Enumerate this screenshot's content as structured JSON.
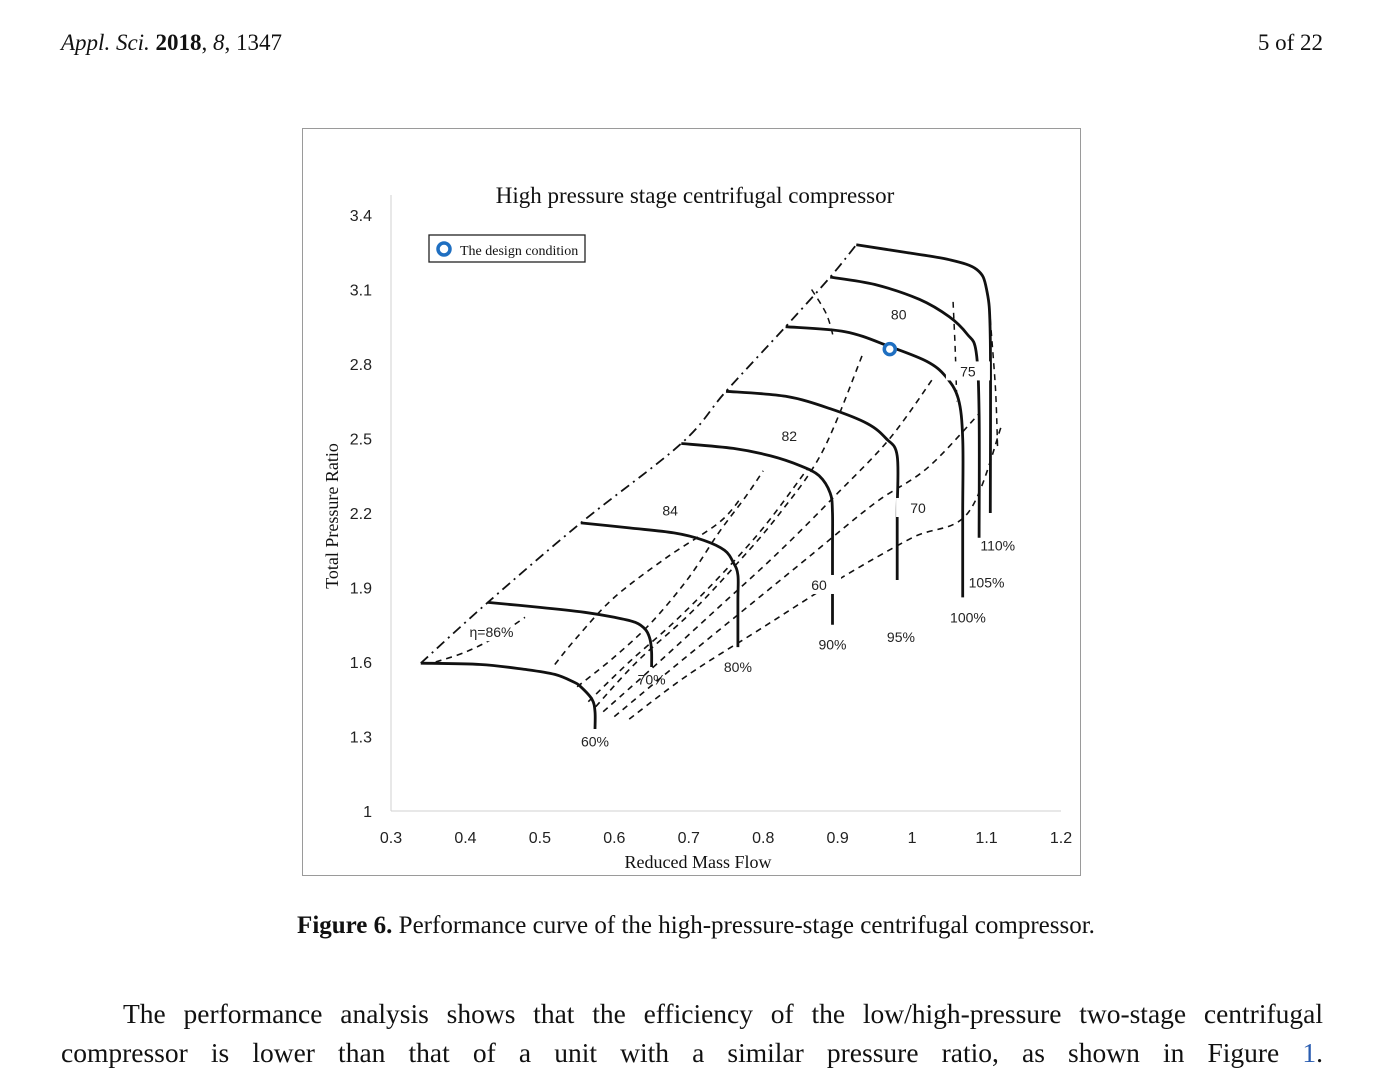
{
  "header": {
    "journal": "Appl. Sci.",
    "year": "2018",
    "volume": "8",
    "article": "1347",
    "page": "5 of 22"
  },
  "caption": {
    "label": "Figure 6.",
    "text": "Performance curve of the high-pressure-stage centrifugal compressor."
  },
  "paragraph": {
    "line1": "The performance analysis shows that the efficiency of the low/high-pressure two-stage centrifugal",
    "line2_before": "compressor is lower than that of a unit with a similar pressure ratio, as shown in Figure",
    "line2_ref": "1",
    "line2_after": "."
  },
  "chart_data": {
    "type": "line",
    "title": "High pressure stage centrifugal compressor",
    "xlabel": "Reduced Mass Flow",
    "ylabel": "Total Pressure Ratio",
    "xlim": [
      0.3,
      1.2
    ],
    "ylim": [
      1,
      3.4
    ],
    "x_ticks": [
      "0.3",
      "0.4",
      "0.5",
      "0.6",
      "0.7",
      "0.8",
      "0.9",
      "1",
      "1.1",
      "1.2"
    ],
    "y_ticks": [
      "1",
      "1.3",
      "1.6",
      "1.9",
      "2.2",
      "2.5",
      "2.8",
      "3.1",
      "3.4"
    ],
    "legend": {
      "label": "The design condition",
      "position": "top-left"
    },
    "speed_lines": [
      {
        "name": "60%",
        "x": [
          0.34,
          0.42,
          0.48,
          0.52,
          0.545,
          0.555,
          0.57,
          0.574,
          0.574
        ],
        "y": [
          1.595,
          1.59,
          1.57,
          1.55,
          1.52,
          1.5,
          1.45,
          1.4,
          1.33
        ]
      },
      {
        "name": "70%",
        "x": [
          0.43,
          0.5,
          0.56,
          0.6,
          0.628,
          0.642,
          0.648,
          0.65,
          0.65
        ],
        "y": [
          1.84,
          1.82,
          1.8,
          1.78,
          1.76,
          1.73,
          1.69,
          1.64,
          1.58
        ]
      },
      {
        "name": "80%",
        "x": [
          0.555,
          0.62,
          0.68,
          0.72,
          0.748,
          0.76,
          0.766,
          0.766,
          0.766
        ],
        "y": [
          2.16,
          2.14,
          2.12,
          2.09,
          2.05,
          2.0,
          1.95,
          1.85,
          1.66
        ]
      },
      {
        "name": "90%",
        "x": [
          0.69,
          0.76,
          0.81,
          0.85,
          0.875,
          0.89,
          0.893,
          0.893,
          0.893
        ],
        "y": [
          2.48,
          2.46,
          2.43,
          2.39,
          2.35,
          2.28,
          2.2,
          2.05,
          1.75
        ]
      },
      {
        "name": "95%",
        "x": [
          0.75,
          0.83,
          0.89,
          0.94,
          0.965,
          0.98,
          0.98,
          0.98
        ],
        "y": [
          2.69,
          2.67,
          2.62,
          2.56,
          2.5,
          2.43,
          2.2,
          1.93
        ]
      },
      {
        "name": "100%",
        "x": [
          0.83,
          0.91,
          0.97,
          1.02,
          1.045,
          1.062,
          1.068,
          1.068,
          1.068
        ],
        "y": [
          2.95,
          2.93,
          2.87,
          2.81,
          2.75,
          2.66,
          2.5,
          2.2,
          1.86
        ]
      },
      {
        "name": "105%",
        "x": [
          0.89,
          0.95,
          1.01,
          1.05,
          1.074,
          1.086,
          1.09,
          1.09
        ],
        "y": [
          3.15,
          3.12,
          3.06,
          2.99,
          2.92,
          2.85,
          2.6,
          2.1
        ]
      },
      {
        "name": "110%",
        "x": [
          0.925,
          0.99,
          1.05,
          1.087,
          1.1,
          1.105,
          1.105
        ],
        "y": [
          3.28,
          3.25,
          3.22,
          3.18,
          3.1,
          2.9,
          2.2
        ]
      }
    ],
    "surge_line": {
      "x": [
        0.34,
        0.43,
        0.555,
        0.69,
        0.75,
        0.83,
        0.89,
        0.925
      ],
      "y": [
        1.595,
        1.84,
        2.16,
        2.48,
        2.69,
        2.95,
        3.15,
        3.28
      ]
    },
    "efficiency_contours": [
      {
        "label": "η=86%",
        "x": [
          0.36,
          0.4,
          0.44,
          0.48
        ],
        "y": [
          1.6,
          1.64,
          1.7,
          1.78
        ]
      },
      {
        "label": "",
        "x": [
          0.52,
          0.55,
          0.6,
          0.67,
          0.74,
          0.77
        ],
        "y": [
          1.59,
          1.7,
          1.86,
          2.02,
          2.16,
          2.26
        ]
      },
      {
        "label": "84",
        "x": [
          0.55,
          0.6,
          0.65,
          0.7,
          0.74,
          0.775,
          0.8
        ],
        "y": [
          1.5,
          1.62,
          1.76,
          1.94,
          2.12,
          2.26,
          2.37
        ]
      },
      {
        "label": "82",
        "x": [
          0.565,
          0.62,
          0.68,
          0.74,
          0.8,
          0.86
        ],
        "y": [
          1.44,
          1.6,
          1.76,
          1.94,
          2.14,
          2.38
        ]
      },
      {
        "label": "80",
        "x": [
          0.575,
          0.63,
          0.7,
          0.76,
          0.82,
          0.88,
          0.935
        ],
        "y": [
          1.42,
          1.6,
          1.79,
          1.98,
          2.19,
          2.45,
          2.85
        ]
      },
      {
        "label": "75",
        "x": [
          0.585,
          0.66,
          0.74,
          0.82,
          0.9,
          0.97,
          1.03
        ],
        "y": [
          1.4,
          1.6,
          1.82,
          2.04,
          2.28,
          2.5,
          2.75
        ]
      },
      {
        "label": "70",
        "x": [
          0.6,
          0.68,
          0.77,
          0.86,
          0.95,
          1.02,
          1.09
        ],
        "y": [
          1.38,
          1.58,
          1.8,
          2.02,
          2.24,
          2.38,
          2.6
        ]
      },
      {
        "label": "60",
        "x": [
          0.62,
          0.7,
          0.8,
          0.9,
          1.0,
          1.075,
          1.12
        ],
        "y": [
          1.37,
          1.55,
          1.74,
          1.93,
          2.1,
          2.2,
          2.55
        ]
      }
    ],
    "choke_dashes": [
      {
        "x": [
          0.865,
          0.885,
          0.895
        ],
        "y": [
          3.1,
          3.0,
          2.9
        ]
      },
      {
        "x": [
          1.055,
          1.058,
          1.06
        ],
        "y": [
          3.05,
          2.85,
          2.65
        ]
      },
      {
        "x": [
          1.105,
          1.112,
          1.115
        ],
        "y": [
          2.98,
          2.7,
          2.45
        ]
      }
    ],
    "design_point": {
      "x": 0.97,
      "y": 2.86
    },
    "point_labels": [
      {
        "text": "60%",
        "x": 0.574,
        "y": 1.26
      },
      {
        "text": "70%",
        "x": 0.65,
        "y": 1.51
      },
      {
        "text": "80%",
        "x": 0.766,
        "y": 1.56
      },
      {
        "text": "90%",
        "x": 0.893,
        "y": 1.65
      },
      {
        "text": "95%",
        "x": 0.985,
        "y": 1.68
      },
      {
        "text": "100%",
        "x": 1.075,
        "y": 1.76
      },
      {
        "text": "105%",
        "x": 1.1,
        "y": 1.9
      },
      {
        "text": "110%",
        "x": 1.115,
        "y": 2.05
      }
    ]
  }
}
